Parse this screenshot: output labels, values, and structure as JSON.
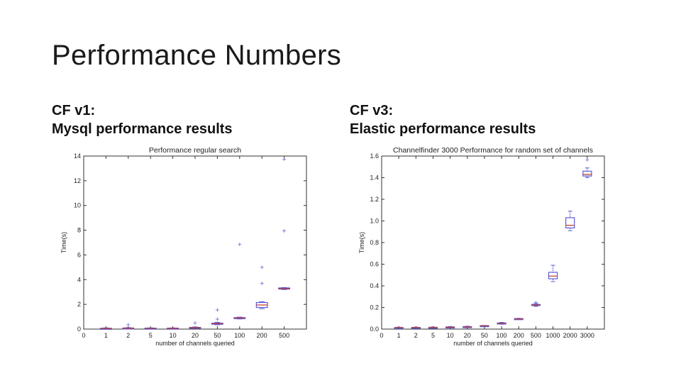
{
  "slide": {
    "title": "Performance Numbers",
    "left_heading": [
      "CF v1:",
      "Mysql performance results"
    ],
    "right_heading": [
      "CF v3:",
      "Elastic performance results"
    ]
  },
  "colors": {
    "box": "#5b5bd6",
    "median": "#c0392b",
    "outlier": "#6a6ad8",
    "axis": "#333333"
  },
  "chart_data": [
    {
      "type": "box",
      "title": "Performance regular search",
      "xlabel": "number of channels queried",
      "ylabel": "Time(s)",
      "xlim_label": "0",
      "categories": [
        "1",
        "2",
        "5",
        "10",
        "20",
        "50",
        "100",
        "200",
        "500"
      ],
      "ylim": [
        0,
        14
      ],
      "yticks": [
        0,
        2,
        4,
        6,
        8,
        10,
        12,
        14
      ],
      "grid": false,
      "boxes": [
        {
          "whislo": 0.02,
          "q1": 0.03,
          "med": 0.05,
          "q3": 0.07,
          "whishi": 0.1,
          "fliers": []
        },
        {
          "whislo": 0.03,
          "q1": 0.05,
          "med": 0.07,
          "q3": 0.09,
          "whishi": 0.12,
          "fliers": [
            0.35
          ]
        },
        {
          "whislo": 0.02,
          "q1": 0.04,
          "med": 0.06,
          "q3": 0.08,
          "whishi": 0.1,
          "fliers": []
        },
        {
          "whislo": 0.02,
          "q1": 0.04,
          "med": 0.06,
          "q3": 0.08,
          "whishi": 0.1,
          "fliers": []
        },
        {
          "whislo": 0.06,
          "q1": 0.08,
          "med": 0.11,
          "q3": 0.14,
          "whishi": 0.17,
          "fliers": [
            0.5
          ]
        },
        {
          "whislo": 0.35,
          "q1": 0.4,
          "med": 0.44,
          "q3": 0.48,
          "whishi": 0.55,
          "fliers": [
            0.8,
            1.55
          ]
        },
        {
          "whislo": 0.82,
          "q1": 0.86,
          "med": 0.9,
          "q3": 0.93,
          "whishi": 0.97,
          "fliers": [
            6.85
          ]
        },
        {
          "whislo": 1.65,
          "q1": 1.75,
          "med": 1.95,
          "q3": 2.15,
          "whishi": 2.22,
          "fliers": [
            3.7,
            5.0
          ]
        },
        {
          "whislo": 3.2,
          "q1": 3.24,
          "med": 3.28,
          "q3": 3.33,
          "whishi": 3.36,
          "fliers": [
            7.95,
            13.75
          ]
        }
      ]
    },
    {
      "type": "box",
      "title": "Channelfinder 3000 Performance for random set of channels",
      "xlabel": "number of channels queried",
      "ylabel": "Time(s)",
      "xlim_label": "0",
      "categories": [
        "1",
        "2",
        "5",
        "10",
        "20",
        "50",
        "100",
        "200",
        "500",
        "1000",
        "2000",
        "3000"
      ],
      "ylim": [
        0,
        1.6
      ],
      "yticks": [
        "0.0",
        "0.2",
        "0.4",
        "0.6",
        "0.8",
        "1.0",
        "1.2",
        "1.4",
        "1.6"
      ],
      "grid": false,
      "boxes": [
        {
          "whislo": 0.008,
          "q1": 0.011,
          "med": 0.013,
          "q3": 0.015,
          "whishi": 0.018,
          "fliers": []
        },
        {
          "whislo": 0.009,
          "q1": 0.012,
          "med": 0.014,
          "q3": 0.016,
          "whishi": 0.018,
          "fliers": []
        },
        {
          "whislo": 0.01,
          "q1": 0.013,
          "med": 0.015,
          "q3": 0.017,
          "whishi": 0.02,
          "fliers": []
        },
        {
          "whislo": 0.011,
          "q1": 0.014,
          "med": 0.017,
          "q3": 0.02,
          "whishi": 0.024,
          "fliers": []
        },
        {
          "whislo": 0.014,
          "q1": 0.017,
          "med": 0.02,
          "q3": 0.023,
          "whishi": 0.027,
          "fliers": []
        },
        {
          "whislo": 0.025,
          "q1": 0.028,
          "med": 0.03,
          "q3": 0.032,
          "whishi": 0.034,
          "fliers": []
        },
        {
          "whislo": 0.045,
          "q1": 0.05,
          "med": 0.053,
          "q3": 0.057,
          "whishi": 0.062,
          "fliers": []
        },
        {
          "whislo": 0.088,
          "q1": 0.091,
          "med": 0.094,
          "q3": 0.097,
          "whishi": 0.1,
          "fliers": []
        },
        {
          "whislo": 0.21,
          "q1": 0.218,
          "med": 0.222,
          "q3": 0.228,
          "whishi": 0.236,
          "fliers": [
            0.245
          ]
        },
        {
          "whislo": 0.44,
          "q1": 0.465,
          "med": 0.49,
          "q3": 0.525,
          "whishi": 0.59,
          "fliers": []
        },
        {
          "whislo": 0.91,
          "q1": 0.935,
          "med": 0.96,
          "q3": 1.03,
          "whishi": 1.09,
          "fliers": []
        },
        {
          "whislo": 1.4,
          "q1": 1.415,
          "med": 1.43,
          "q3": 1.46,
          "whishi": 1.49,
          "fliers": [
            1.565
          ]
        }
      ]
    }
  ]
}
